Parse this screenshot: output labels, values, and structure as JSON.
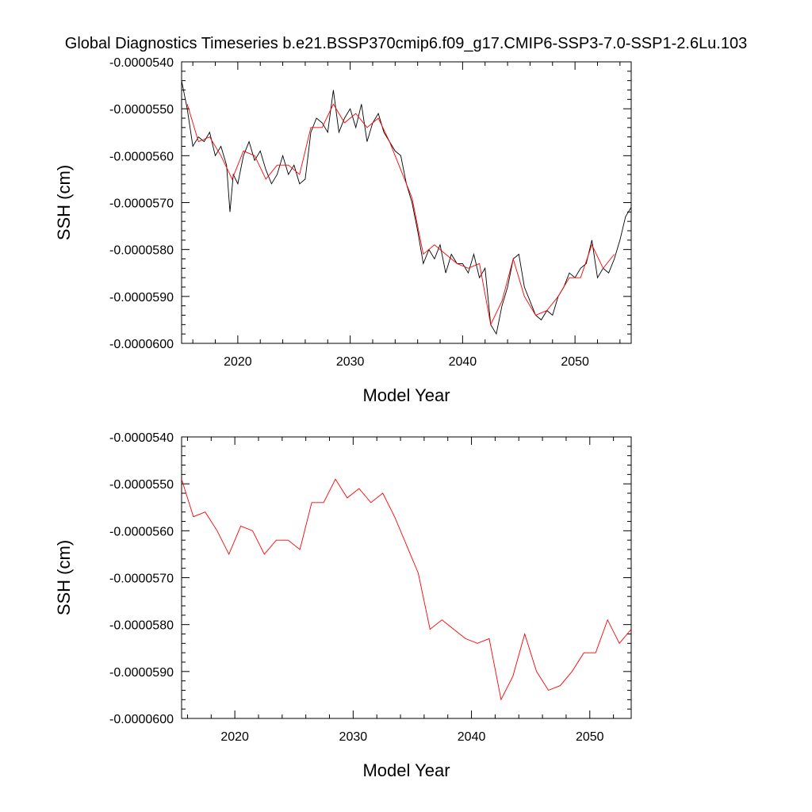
{
  "title": "Global Diagnostics Timeseries b.e21.BSSP370cmip6.f09_g17.CMIP6-SSP3-7.0-SSP1-2.6Lu.103",
  "colors": {
    "monthly_line": "#000000",
    "annual_line": "#ff0000",
    "axis": "#000000"
  },
  "chart_data": [
    {
      "type": "line",
      "xlabel": "Model Year",
      "ylabel": "SSH (cm)",
      "xlim": [
        2015.0,
        2055.0
      ],
      "ylim": [
        -6e-05,
        -5.4e-05
      ],
      "x_ticks": [
        2020,
        2030,
        2040,
        2050
      ],
      "x_tick_labels": [
        "2020",
        "2030",
        "2040",
        "2050"
      ],
      "y_ticks": [
        -5.4e-05,
        -5.5e-05,
        -5.6e-05,
        -5.7e-05,
        -5.8e-05,
        -5.9e-05,
        -6e-05
      ],
      "y_tick_labels": [
        "-0.0000540",
        "-0.0000550",
        "-0.0000560",
        "-0.0000570",
        "-0.0000580",
        "-0.0000590",
        "-0.0000600"
      ],
      "series": [
        {
          "style": "monthly",
          "x": [
            2015.0,
            2015.5,
            2016.0,
            2016.5,
            2017.0,
            2017.5,
            2018.0,
            2018.5,
            2019.0,
            2019.3,
            2019.6,
            2020.0,
            2020.5,
            2021.0,
            2021.5,
            2022.0,
            2022.5,
            2023.0,
            2023.5,
            2024.0,
            2024.5,
            2025.0,
            2025.5,
            2026.0,
            2026.5,
            2027.0,
            2027.5,
            2028.0,
            2028.5,
            2029.0,
            2029.5,
            2030.0,
            2030.5,
            2031.0,
            2031.5,
            2032.0,
            2032.5,
            2033.0,
            2033.5,
            2034.0,
            2034.5,
            2035.0,
            2035.5,
            2036.0,
            2036.5,
            2037.0,
            2037.5,
            2038.0,
            2038.5,
            2039.0,
            2039.5,
            2040.0,
            2040.5,
            2041.0,
            2041.5,
            2042.0,
            2042.5,
            2043.0,
            2043.5,
            2044.0,
            2044.5,
            2045.0,
            2045.5,
            2046.0,
            2046.5,
            2047.0,
            2047.5,
            2048.0,
            2048.5,
            2049.0,
            2049.5,
            2050.0,
            2050.5,
            2051.0,
            2051.5,
            2052.0,
            2052.5,
            2053.0,
            2053.5,
            2054.0,
            2054.5,
            2055.0
          ],
          "y": [
            -5.44e-05,
            -5.5e-05,
            -5.58e-05,
            -5.56e-05,
            -5.57e-05,
            -5.55e-05,
            -5.6e-05,
            -5.58e-05,
            -5.62e-05,
            -5.72e-05,
            -5.64e-05,
            -5.66e-05,
            -5.6e-05,
            -5.57e-05,
            -5.61e-05,
            -5.59e-05,
            -5.63e-05,
            -5.66e-05,
            -5.64e-05,
            -5.6e-05,
            -5.64e-05,
            -5.62e-05,
            -5.66e-05,
            -5.65e-05,
            -5.55e-05,
            -5.52e-05,
            -5.53e-05,
            -5.55e-05,
            -5.46e-05,
            -5.55e-05,
            -5.52e-05,
            -5.5e-05,
            -5.54e-05,
            -5.49e-05,
            -5.57e-05,
            -5.53e-05,
            -5.51e-05,
            -5.55e-05,
            -5.57e-05,
            -5.59e-05,
            -5.6e-05,
            -5.66e-05,
            -5.7e-05,
            -5.76e-05,
            -5.83e-05,
            -5.8e-05,
            -5.82e-05,
            -5.79e-05,
            -5.85e-05,
            -5.81e-05,
            -5.83e-05,
            -5.83e-05,
            -5.85e-05,
            -5.81e-05,
            -5.86e-05,
            -5.84e-05,
            -5.96e-05,
            -5.98e-05,
            -5.92e-05,
            -5.88e-05,
            -5.82e-05,
            -5.81e-05,
            -5.88e-05,
            -5.91e-05,
            -5.94e-05,
            -5.95e-05,
            -5.93e-05,
            -5.94e-05,
            -5.9e-05,
            -5.88e-05,
            -5.85e-05,
            -5.86e-05,
            -5.84e-05,
            -5.83e-05,
            -5.78e-05,
            -5.86e-05,
            -5.84e-05,
            -5.85e-05,
            -5.82e-05,
            -5.78e-05,
            -5.73e-05,
            -5.71e-05
          ]
        },
        {
          "style": "annual",
          "x": [
            2015.5,
            2016.5,
            2017.5,
            2018.5,
            2019.5,
            2020.5,
            2021.5,
            2022.5,
            2023.5,
            2024.5,
            2025.5,
            2026.5,
            2027.5,
            2028.5,
            2029.5,
            2030.5,
            2031.5,
            2032.5,
            2033.5,
            2034.5,
            2035.5,
            2036.5,
            2037.5,
            2038.5,
            2039.5,
            2040.5,
            2041.5,
            2042.5,
            2043.5,
            2044.5,
            2045.5,
            2046.5,
            2047.5,
            2048.5,
            2049.5,
            2050.5,
            2051.5,
            2052.5,
            2053.5
          ],
          "y": [
            -5.49e-05,
            -5.57e-05,
            -5.56e-05,
            -5.6e-05,
            -5.65e-05,
            -5.59e-05,
            -5.6e-05,
            -5.65e-05,
            -5.62e-05,
            -5.62e-05,
            -5.64e-05,
            -5.54e-05,
            -5.54e-05,
            -5.49e-05,
            -5.53e-05,
            -5.51e-05,
            -5.54e-05,
            -5.52e-05,
            -5.57e-05,
            -5.63e-05,
            -5.69e-05,
            -5.81e-05,
            -5.79e-05,
            -5.81e-05,
            -5.83e-05,
            -5.84e-05,
            -5.83e-05,
            -5.96e-05,
            -5.91e-05,
            -5.82e-05,
            -5.9e-05,
            -5.94e-05,
            -5.93e-05,
            -5.9e-05,
            -5.86e-05,
            -5.86e-05,
            -5.79e-05,
            -5.84e-05,
            -5.81e-05
          ]
        }
      ]
    },
    {
      "type": "line",
      "xlabel": "Model Year",
      "ylabel": "SSH (cm)",
      "xlim": [
        2015.5,
        2053.5
      ],
      "ylim": [
        -6e-05,
        -5.4e-05
      ],
      "x_ticks": [
        2020,
        2030,
        2040,
        2050
      ],
      "x_tick_labels": [
        "2020",
        "2030",
        "2040",
        "2050"
      ],
      "y_ticks": [
        -5.4e-05,
        -5.5e-05,
        -5.6e-05,
        -5.7e-05,
        -5.8e-05,
        -5.9e-05,
        -6e-05
      ],
      "y_tick_labels": [
        "-0.0000540",
        "-0.0000550",
        "-0.0000560",
        "-0.0000570",
        "-0.0000580",
        "-0.0000590",
        "-0.0000600"
      ],
      "series": [
        {
          "style": "annual",
          "x": [
            2015.5,
            2016.5,
            2017.5,
            2018.5,
            2019.5,
            2020.5,
            2021.5,
            2022.5,
            2023.5,
            2024.5,
            2025.5,
            2026.5,
            2027.5,
            2028.5,
            2029.5,
            2030.5,
            2031.5,
            2032.5,
            2033.5,
            2034.5,
            2035.5,
            2036.5,
            2037.5,
            2038.5,
            2039.5,
            2040.5,
            2041.5,
            2042.5,
            2043.5,
            2044.5,
            2045.5,
            2046.5,
            2047.5,
            2048.5,
            2049.5,
            2050.5,
            2051.5,
            2052.5,
            2053.5
          ],
          "y": [
            -5.49e-05,
            -5.57e-05,
            -5.56e-05,
            -5.6e-05,
            -5.65e-05,
            -5.59e-05,
            -5.6e-05,
            -5.65e-05,
            -5.62e-05,
            -5.62e-05,
            -5.64e-05,
            -5.54e-05,
            -5.54e-05,
            -5.49e-05,
            -5.53e-05,
            -5.51e-05,
            -5.54e-05,
            -5.52e-05,
            -5.57e-05,
            -5.63e-05,
            -5.69e-05,
            -5.81e-05,
            -5.79e-05,
            -5.81e-05,
            -5.83e-05,
            -5.84e-05,
            -5.83e-05,
            -5.96e-05,
            -5.91e-05,
            -5.82e-05,
            -5.9e-05,
            -5.94e-05,
            -5.93e-05,
            -5.9e-05,
            -5.86e-05,
            -5.86e-05,
            -5.79e-05,
            -5.84e-05,
            -5.81e-05
          ]
        }
      ]
    }
  ]
}
